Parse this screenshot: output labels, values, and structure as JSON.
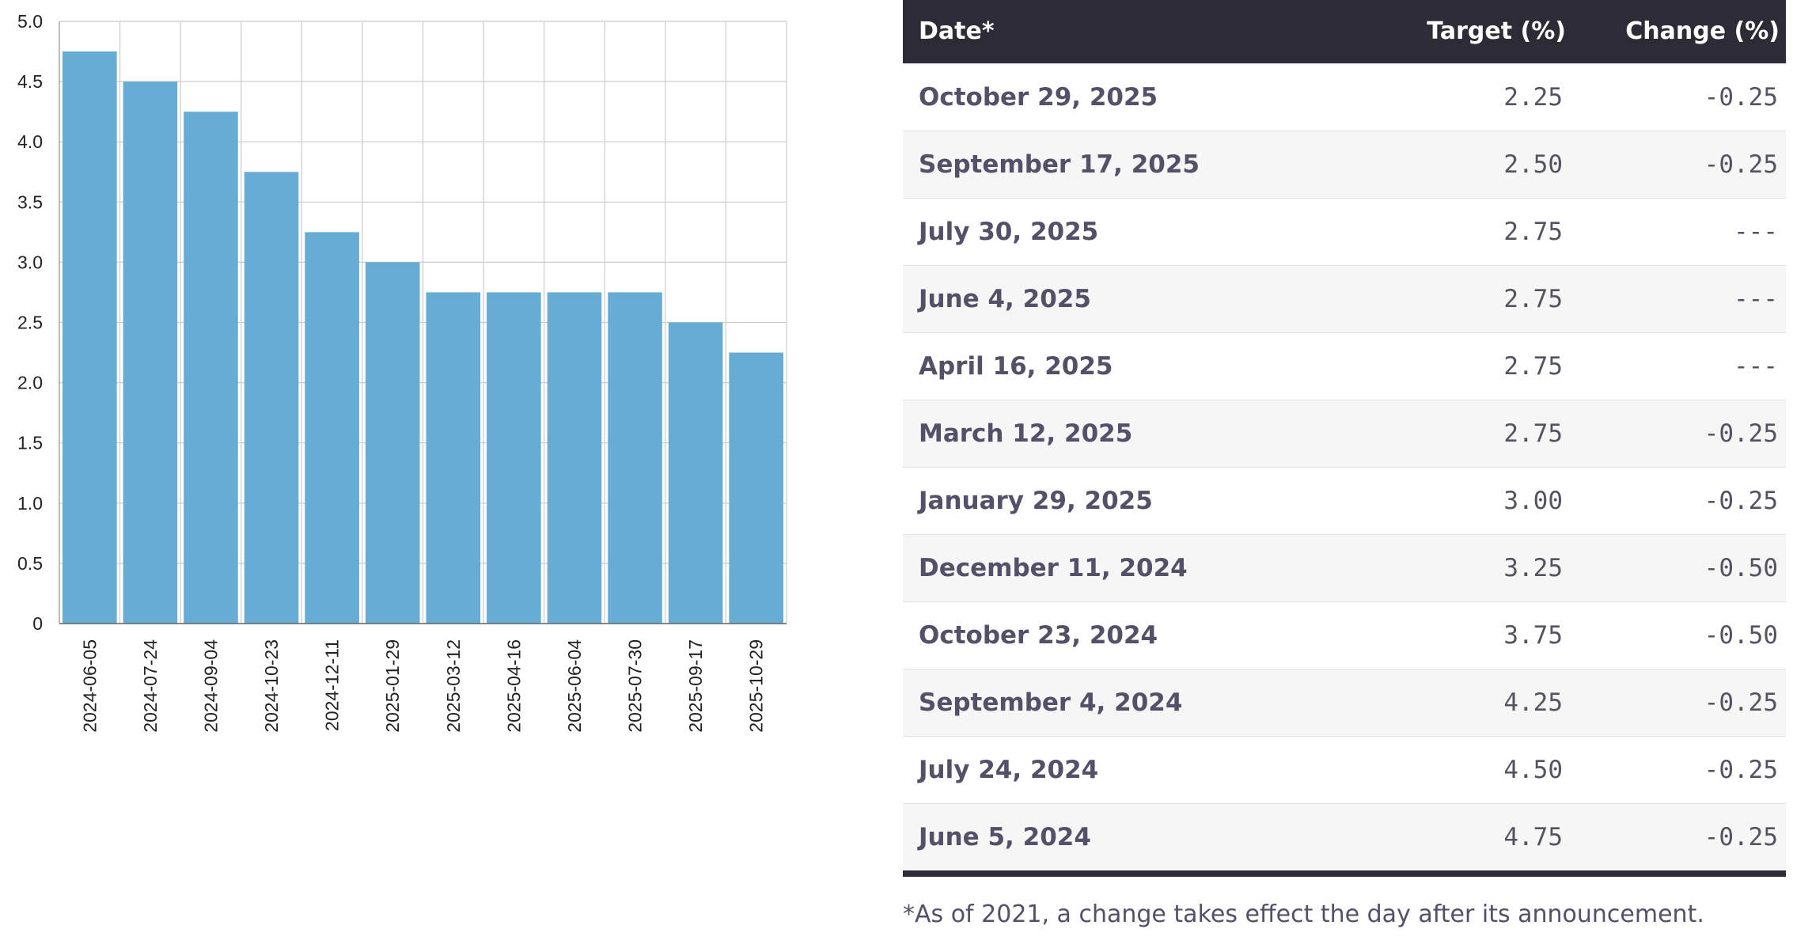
{
  "chart_data": {
    "type": "bar",
    "categories": [
      "2024-06-05",
      "2024-07-24",
      "2024-09-04",
      "2024-10-23",
      "2024-12-11",
      "2025-01-29",
      "2025-03-12",
      "2025-04-16",
      "2025-06-04",
      "2025-07-30",
      "2025-09-17",
      "2025-10-29"
    ],
    "values": [
      4.75,
      4.5,
      4.25,
      3.75,
      3.25,
      3.0,
      2.75,
      2.75,
      2.75,
      2.75,
      2.5,
      2.25
    ],
    "ylim": [
      0,
      5.0
    ],
    "yticks": [
      "0",
      "0.5",
      "1.0",
      "1.5",
      "2.0",
      "2.5",
      "3.0",
      "3.5",
      "4.0",
      "4.5",
      "5.0"
    ],
    "grid": true,
    "bar_color": "#67acd5",
    "title": "",
    "xlabel": "",
    "ylabel": ""
  },
  "table": {
    "headers": {
      "date": "Date*",
      "target": "Target (%)",
      "change": "Change (%)"
    },
    "rows": [
      {
        "date": "October 29, 2025",
        "target": "2.25",
        "change": "-0.25"
      },
      {
        "date": "September 17, 2025",
        "target": "2.50",
        "change": "-0.25"
      },
      {
        "date": "July 30, 2025",
        "target": "2.75",
        "change": "---"
      },
      {
        "date": "June 4, 2025",
        "target": "2.75",
        "change": "---"
      },
      {
        "date": "April 16, 2025",
        "target": "2.75",
        "change": "---"
      },
      {
        "date": "March 12, 2025",
        "target": "2.75",
        "change": "-0.25"
      },
      {
        "date": "January 29, 2025",
        "target": "3.00",
        "change": "-0.25"
      },
      {
        "date": "December 11, 2024",
        "target": "3.25",
        "change": "-0.50"
      },
      {
        "date": "October 23, 2024",
        "target": "3.75",
        "change": "-0.50"
      },
      {
        "date": "September 4, 2024",
        "target": "4.25",
        "change": "-0.25"
      },
      {
        "date": "July 24, 2024",
        "target": "4.50",
        "change": "-0.25"
      },
      {
        "date": "June 5, 2024",
        "target": "4.75",
        "change": "-0.25"
      }
    ],
    "header_bg": "#2d2b35"
  },
  "footnote": "*As of 2021, a change takes effect the day after its announcement."
}
